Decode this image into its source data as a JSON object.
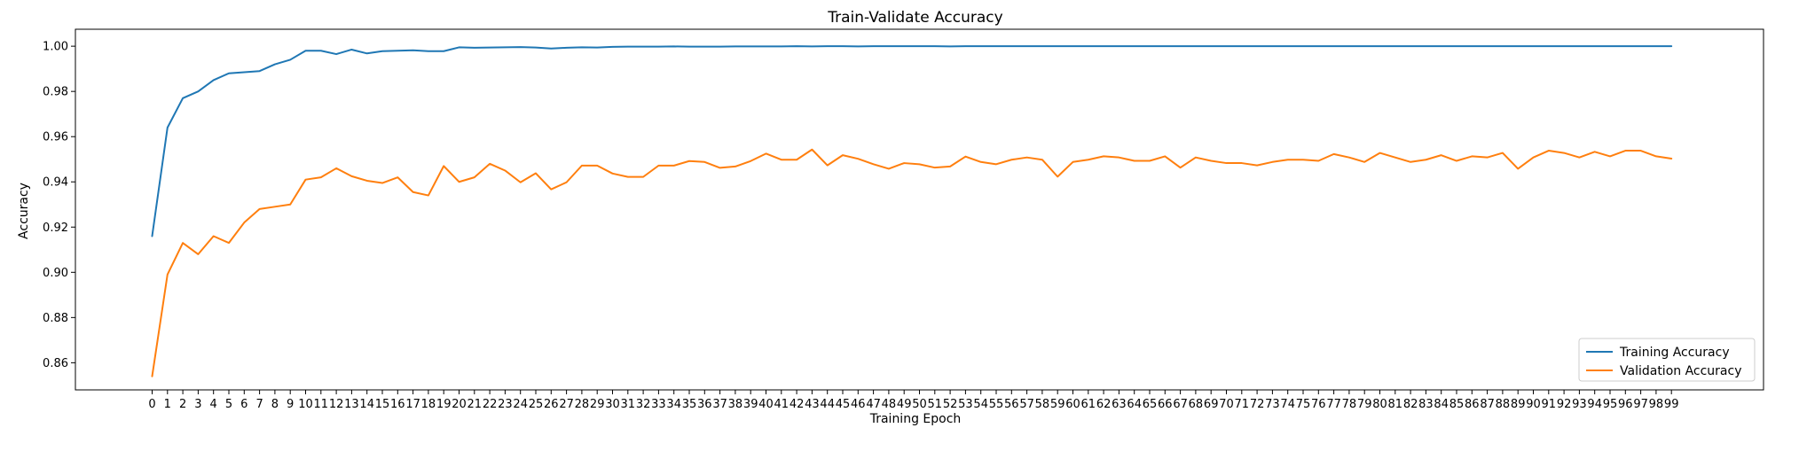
{
  "chart_data": {
    "type": "line",
    "title": "Train-Validate Accuracy",
    "xlabel": "Training Epoch",
    "ylabel": "Accuracy",
    "xlim": [
      -5,
      105
    ],
    "ylim": [
      0.848,
      1.0075
    ],
    "yticks": [
      0.86,
      0.88,
      0.9,
      0.92,
      0.94,
      0.96,
      0.98,
      1.0
    ],
    "ytick_labels": [
      "0.86",
      "0.88",
      "0.90",
      "0.92",
      "0.94",
      "0.96",
      "0.98",
      "1.00"
    ],
    "x": [
      0,
      1,
      2,
      3,
      4,
      5,
      6,
      7,
      8,
      9,
      10,
      11,
      12,
      13,
      14,
      15,
      16,
      17,
      18,
      19,
      20,
      21,
      22,
      23,
      24,
      25,
      26,
      27,
      28,
      29,
      30,
      31,
      32,
      33,
      34,
      35,
      36,
      37,
      38,
      39,
      40,
      41,
      42,
      43,
      44,
      45,
      46,
      47,
      48,
      49,
      50,
      51,
      52,
      53,
      54,
      55,
      56,
      57,
      58,
      59,
      60,
      61,
      62,
      63,
      64,
      65,
      66,
      67,
      68,
      69,
      70,
      71,
      72,
      73,
      74,
      75,
      76,
      77,
      78,
      79,
      80,
      81,
      82,
      83,
      84,
      85,
      86,
      87,
      88,
      89,
      90,
      91,
      92,
      93,
      94,
      95,
      96,
      97,
      98,
      99
    ],
    "grid": false,
    "legend_position": "lower-right",
    "series": [
      {
        "name": "Training Accuracy",
        "color": "#1f77b4",
        "values": [
          0.916,
          0.964,
          0.977,
          0.98,
          0.985,
          0.988,
          0.9885,
          0.989,
          0.992,
          0.994,
          0.998,
          0.998,
          0.9965,
          0.9985,
          0.9968,
          0.9978,
          0.998,
          0.9982,
          0.9978,
          0.9978,
          0.9995,
          0.9993,
          0.9994,
          0.9995,
          0.9996,
          0.9994,
          0.999,
          0.9993,
          0.9995,
          0.9994,
          0.9997,
          0.9998,
          0.9998,
          0.9998,
          0.9999,
          0.9998,
          0.9998,
          0.9998,
          0.9999,
          0.9999,
          0.9999,
          0.9999,
          1.0,
          0.9999,
          1.0,
          1.0,
          0.9999,
          1.0,
          1.0,
          1.0,
          1.0,
          1.0,
          0.9999,
          1.0,
          1.0,
          1.0,
          1.0,
          1.0,
          1.0,
          1.0,
          1.0,
          1.0,
          1.0,
          1.0,
          1.0,
          1.0,
          1.0,
          1.0,
          1.0,
          1.0,
          1.0,
          1.0,
          1.0,
          1.0,
          1.0,
          1.0,
          1.0,
          1.0,
          1.0,
          1.0,
          1.0,
          1.0,
          1.0,
          1.0,
          1.0,
          1.0,
          1.0,
          1.0,
          1.0,
          1.0,
          1.0,
          1.0,
          1.0,
          1.0,
          1.0,
          1.0,
          1.0,
          1.0,
          1.0,
          1.0
        ]
      },
      {
        "name": "Validation Accuracy",
        "color": "#ff7f0e",
        "values": [
          0.854,
          0.899,
          0.913,
          0.908,
          0.916,
          0.913,
          0.922,
          0.928,
          0.929,
          0.93,
          0.941,
          0.942,
          0.946,
          0.9425,
          0.9405,
          0.9395,
          0.942,
          0.9355,
          0.934,
          0.947,
          0.94,
          0.942,
          0.948,
          0.945,
          0.9398,
          0.9438,
          0.9367,
          0.9398,
          0.9472,
          0.9472,
          0.9437,
          0.9422,
          0.9422,
          0.9472,
          0.9472,
          0.9492,
          0.9488,
          0.9462,
          0.9468,
          0.9492,
          0.9525,
          0.9498,
          0.9498,
          0.9543,
          0.9473,
          0.9518,
          0.9502,
          0.9478,
          0.9458,
          0.9483,
          0.9478,
          0.9463,
          0.9468,
          0.9512,
          0.9488,
          0.9478,
          0.9498,
          0.9508,
          0.9498,
          0.9423,
          0.9488,
          0.9498,
          0.9513,
          0.9508,
          0.9493,
          0.9493,
          0.9513,
          0.9463,
          0.9508,
          0.9493,
          0.9483,
          0.9483,
          0.9473,
          0.9488,
          0.9498,
          0.9498,
          0.9493,
          0.9523,
          0.9508,
          0.9488,
          0.9528,
          0.9508,
          0.9488,
          0.9498,
          0.9518,
          0.9493,
          0.9513,
          0.9508,
          0.9528,
          0.9458,
          0.9508,
          0.9538,
          0.9528,
          0.9508,
          0.9533,
          0.9513,
          0.9538,
          0.9538,
          0.9513,
          0.9503
        ]
      }
    ]
  }
}
